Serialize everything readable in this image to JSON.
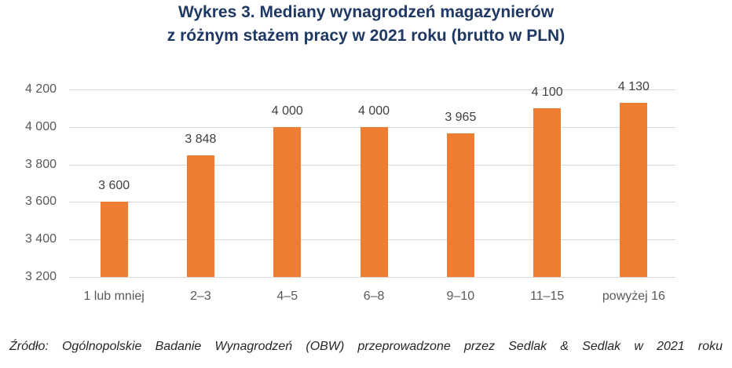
{
  "title": {
    "line1": "Wykres 3. Mediany wynagrodzeń magazynierów",
    "line2": "z różnym stażem pracy w 2021 roku (brutto w PLN)"
  },
  "y_ticks": [
    "4 200",
    "4 000",
    "3 800",
    "3 600",
    "3 400",
    "3 200"
  ],
  "categories": [
    "1 lub mniej",
    "2–3",
    "4–5",
    "6–8",
    "9–10",
    "11–15",
    "powyżej 16"
  ],
  "data_labels": [
    "3 600",
    "3 848",
    "4 000",
    "4 000",
    "3 965",
    "4 100",
    "4 130"
  ],
  "source": "Źródło: Ogólnopolskie Badanie Wynagrodzeń (OBW) przeprowadzone przez Sedlak & Sedlak w 2021 roku",
  "colors": {
    "bar": "#ed7d31",
    "title": "#1f3864",
    "grid": "#d9d9d9"
  },
  "chart_data": {
    "type": "bar",
    "title": "Wykres 3. Mediany wynagrodzeń magazynierów z różnym stażem pracy w 2021 roku (brutto w PLN)",
    "categories": [
      "1 lub mniej",
      "2–3",
      "4–5",
      "6–8",
      "9–10",
      "11–15",
      "powyżej 16"
    ],
    "values": [
      3600,
      3848,
      4000,
      4000,
      3965,
      4100,
      4130
    ],
    "xlabel": "",
    "ylabel": "",
    "ylim": [
      3200,
      4200
    ],
    "yticks": [
      3200,
      3400,
      3600,
      3800,
      4000,
      4200
    ],
    "grid": true,
    "legend": null,
    "data_labels": true,
    "bar_color": "#ed7d31",
    "source": "Źródło: Ogólnopolskie Badanie Wynagrodzeń (OBW) przeprowadzone przez Sedlak & Sedlak w 2021 roku"
  }
}
